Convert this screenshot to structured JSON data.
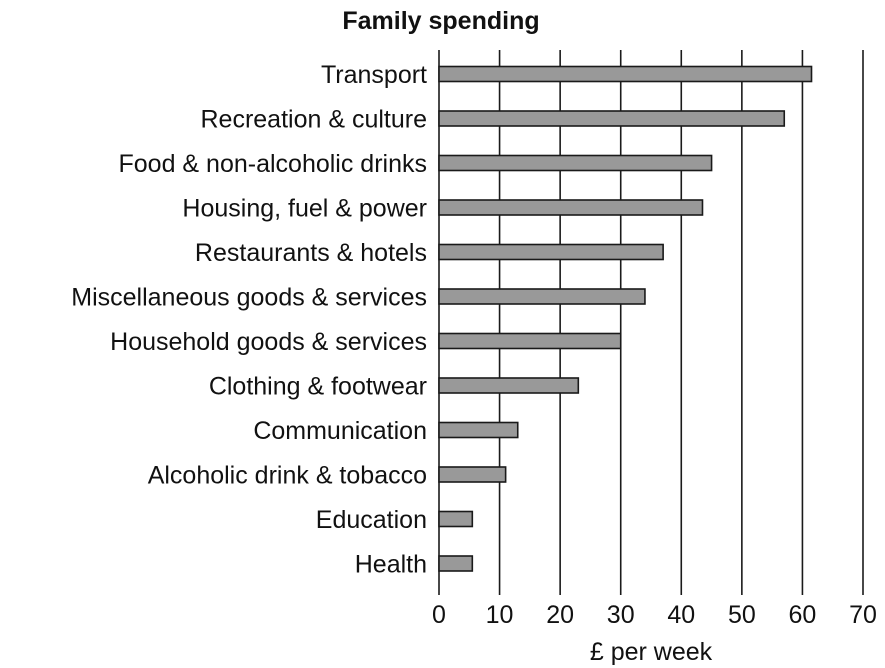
{
  "chart_data": {
    "type": "bar",
    "orientation": "horizontal",
    "title": "Family spending",
    "xlabel": "£ per week",
    "ylabel": "",
    "categories": [
      "Transport",
      "Recreation & culture",
      "Food & non-alcoholic drinks",
      "Housing, fuel & power",
      "Restaurants & hotels",
      "Miscellaneous goods & services",
      "Household goods & services",
      "Clothing & footwear",
      "Communication",
      "Alcoholic drink & tobacco",
      "Education",
      "Health"
    ],
    "values": [
      61.5,
      57,
      45,
      43.5,
      37,
      34,
      30,
      23,
      13,
      11,
      5.5,
      5.5
    ],
    "xlim": [
      0,
      70
    ],
    "xticks": [
      "0",
      "10",
      "20",
      "30",
      "40",
      "50",
      "60",
      "70"
    ],
    "grid": "vertical",
    "legend": "none"
  },
  "colors": {
    "bar_fill": "#999999",
    "bar_stroke": "#1a1a1a",
    "grid": "#1a1a1a"
  }
}
